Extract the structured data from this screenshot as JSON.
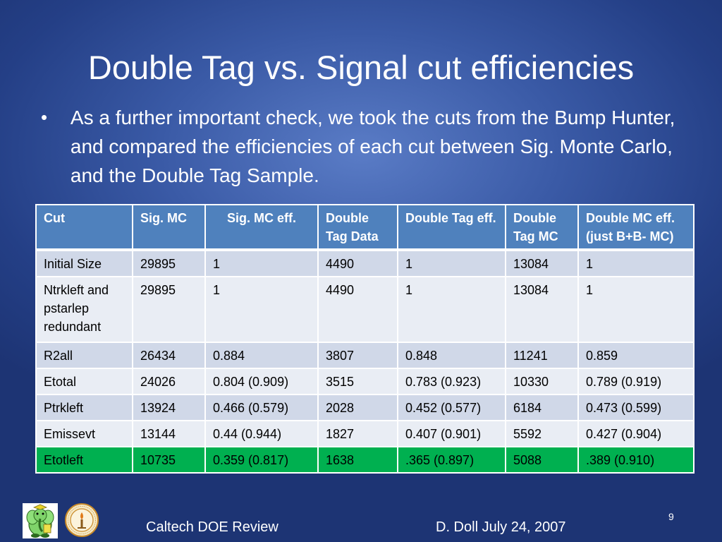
{
  "slide": {
    "title": "Double Tag vs. Signal cut efficiencies",
    "bullet": "As a further important check, we took the cuts from the Bump Hunter, and compared the efficiencies of each cut between Sig. Monte Carlo, and the Double Tag Sample.",
    "footer_left": "Caltech DOE Review",
    "footer_right": "D. Doll  July 24, 2007",
    "slide_number": "9"
  },
  "table": {
    "headers": [
      "Cut",
      "Sig. MC",
      "Sig. MC eff.",
      "Double Tag  Data",
      "Double Tag eff.",
      "Double Tag MC",
      "Double MC eff. (just B+B- MC)"
    ],
    "rows": [
      [
        "Initial Size",
        "29895",
        "1",
        "4490",
        "1",
        "13084",
        "1"
      ],
      [
        "Ntrkleft and pstarlep redundant",
        "29895",
        "1",
        "4490",
        "1",
        "13084",
        "1"
      ],
      [
        "R2all",
        "26434",
        "0.884",
        "3807",
        "0.848",
        "11241",
        "0.859"
      ],
      [
        "Etotal",
        "24026",
        "0.804 (0.909)",
        "3515",
        "0.783 (0.923)",
        "10330",
        "0.789 (0.919)"
      ],
      [
        "Ptrkleft",
        "13924",
        "0.466 (0.579)",
        "2028",
        "0.452 (0.577)",
        "6184",
        "0.473 (0.599)"
      ],
      [
        "Emissevt",
        "13144",
        "0.44 (0.944)",
        "1827",
        "0.407 (0.901)",
        "5592",
        "0.427 (0.904)"
      ],
      [
        "Etotleft",
        "10735",
        "0.359 (0.817)",
        "1638",
        ".365 (0.897)",
        "5088",
        ".389 (0.910)"
      ]
    ],
    "highlight_color": "#00b050",
    "header_color": "#4f81bd"
  },
  "logos": {
    "left": "elephant-mascot-logo",
    "right": "caltech-seal-logo"
  },
  "colors": {
    "background": "#2f4c98",
    "text": "#ffffff"
  }
}
